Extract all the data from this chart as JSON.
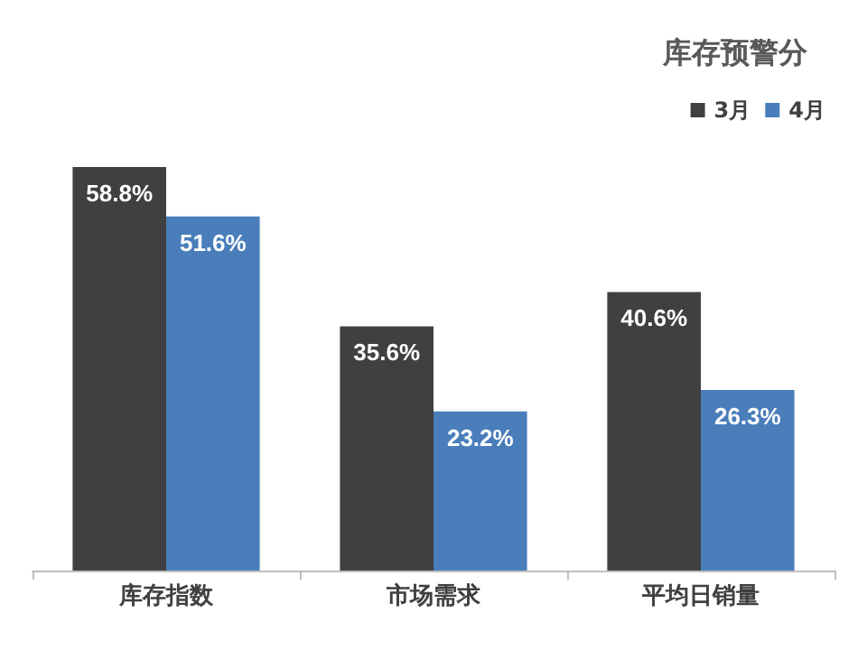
{
  "chart_data": {
    "type": "bar",
    "title": "库存预警分",
    "categories": [
      "库存指数",
      "市场需求",
      "平均日销量"
    ],
    "series": [
      {
        "name": "3月",
        "color": "#404040",
        "values": [
          58.8,
          35.6,
          40.6
        ],
        "value_labels": [
          "58.8%",
          "35.6%",
          "40.6%"
        ]
      },
      {
        "name": "4月",
        "color": "#4a7ebb",
        "values": [
          51.6,
          23.2,
          26.3
        ],
        "value_labels": [
          "51.6%",
          "23.2%",
          "26.3%"
        ]
      }
    ],
    "legend": "top right",
    "grid": false
  }
}
